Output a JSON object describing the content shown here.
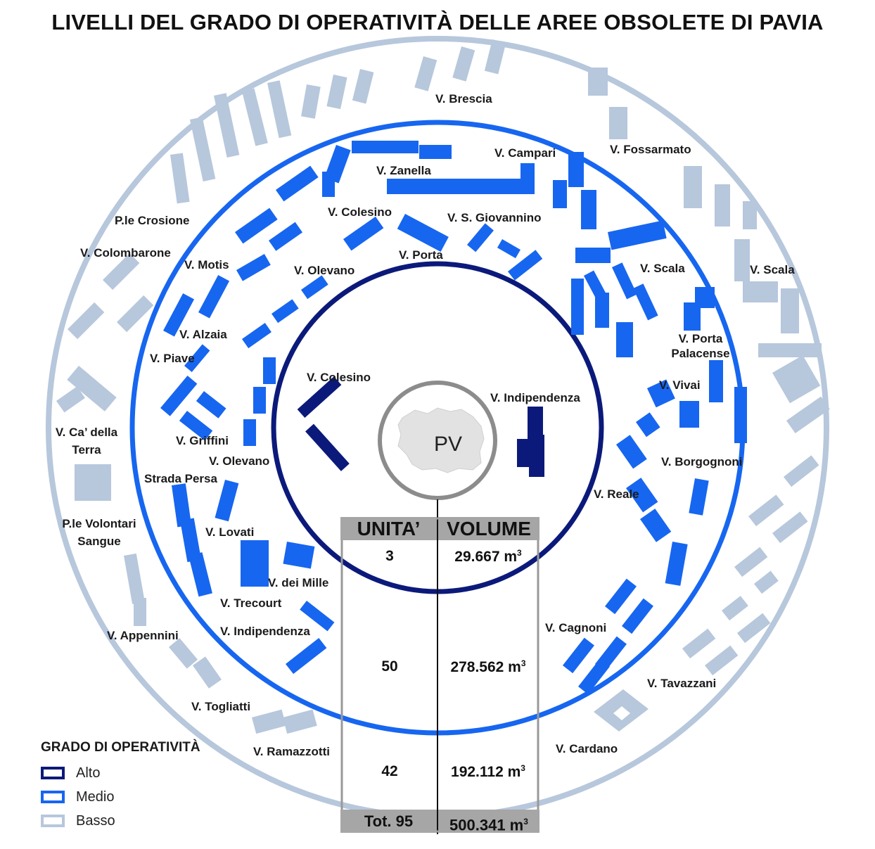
{
  "title": "LIVELLI DEL GRADO DI OPERATIVITÀ DELLE AREE OBSOLETE DI PAVIA",
  "center_label": "PV",
  "colors": {
    "alto": "#0b1a7a",
    "medio": "#1766f0",
    "basso": "#b7c7dc",
    "table_header": "#a6a6a6"
  },
  "labels_inner": [
    "V. Colesino",
    "V. Indipendenza"
  ],
  "labels_middle": [
    "V. Zanella",
    "V. Campari",
    "V. Colesino",
    "V. S. Giovannino",
    "V. Porta",
    "V. Motis",
    "V. Olevano",
    "V. Scala",
    "V. Alzaia",
    "V. Piave",
    "V. Porta Palacense",
    "V. Vivai",
    "V. Griffini",
    "V. Olevano",
    "V. Borgognoni",
    "Strada Persa",
    "V. Reale",
    "V. Lovati",
    "V. dei Mille",
    "V. Trecourt",
    "V. Indipendenza",
    "V. Cagnoni"
  ],
  "labels_outer": [
    "V. Brescia",
    "V. Fossarmato",
    "P.le Crosione",
    "V. Colombarone",
    "V. Scala",
    "V. Ca’ della Terra",
    "P.le Volontari Sangue",
    "V. Appennini",
    "V. Togliatti",
    "V. Ramazzotti",
    "V. Tavazzani",
    "V. Cardano"
  ],
  "table": {
    "headers": [
      "UNITA’",
      "VOLUME"
    ],
    "rows": [
      {
        "unita": "3",
        "volume": "29.667 m",
        "unit_sup": "3"
      },
      {
        "unita": "50",
        "volume": "278.562 m",
        "unit_sup": "3"
      },
      {
        "unita": "42",
        "volume": "192.112 m",
        "unit_sup": "3"
      }
    ],
    "total": {
      "unita": "Tot. 95",
      "volume": "500.341 m",
      "unit_sup": "3"
    }
  },
  "legend": {
    "title": "GRADO DI OPERATIVITÀ",
    "items": [
      {
        "label": "Alto",
        "color": "#0b1a7a"
      },
      {
        "label": "Medio",
        "color": "#1766f0"
      },
      {
        "label": "Basso",
        "color": "#b7c7dc"
      }
    ]
  }
}
